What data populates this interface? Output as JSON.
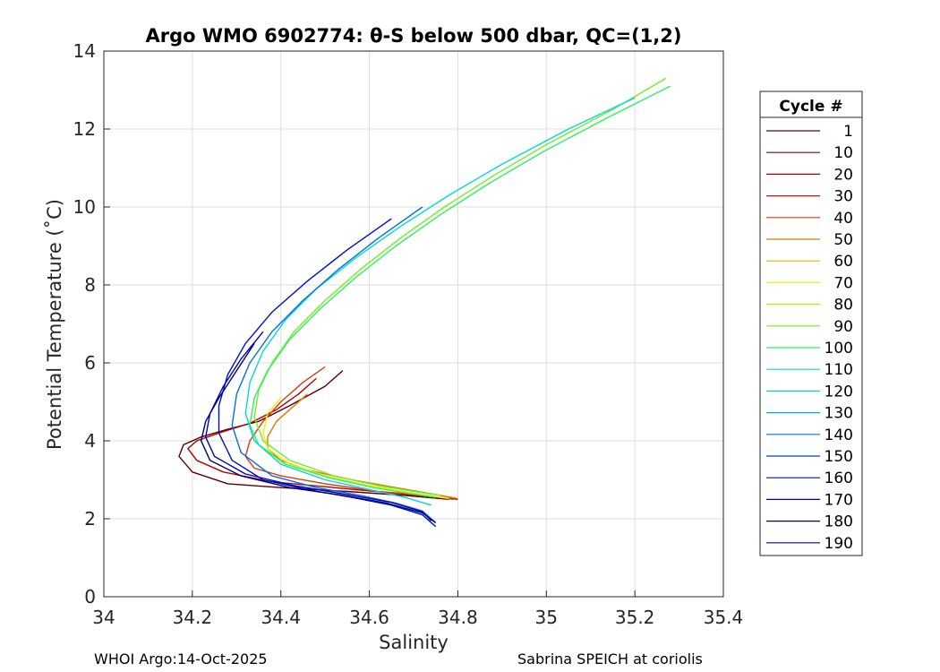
{
  "chart_data": {
    "type": "line",
    "title": "Argo WMO 6902774: θ-S below 500 dbar,  QC=(1,2)",
    "xlabel": "Salinity",
    "ylabel": "Potential Temperature (˚C)",
    "xlim": [
      34,
      35.4
    ],
    "ylim": [
      0,
      14
    ],
    "x_ticks": [
      "34",
      "34.2",
      "34.4",
      "34.6",
      "34.8",
      "35",
      "35.2",
      "35.4"
    ],
    "y_ticks": [
      "0",
      "2",
      "4",
      "6",
      "8",
      "10",
      "12",
      "14"
    ],
    "grid": true,
    "legend": {
      "title": "Cycle #",
      "placement": "right",
      "entries": [
        {
          "label": "1",
          "color": "#5a0000"
        },
        {
          "label": "10",
          "color": "#8a0000"
        },
        {
          "label": "20",
          "color": "#b00000"
        },
        {
          "label": "30",
          "color": "#d01010"
        },
        {
          "label": "40",
          "color": "#dd3a10"
        },
        {
          "label": "50",
          "color": "#dd7a00"
        },
        {
          "label": "60",
          "color": "#e0b000"
        },
        {
          "label": "70",
          "color": "#f0f000"
        },
        {
          "label": "80",
          "color": "#b8f000"
        },
        {
          "label": "90",
          "color": "#70f020"
        },
        {
          "label": "100",
          "color": "#30f060"
        },
        {
          "label": "110",
          "color": "#10e0a0"
        },
        {
          "label": "120",
          "color": "#00d8d8"
        },
        {
          "label": "130",
          "color": "#00a8e8"
        },
        {
          "label": "140",
          "color": "#0070e0"
        },
        {
          "label": "150",
          "color": "#0040d0"
        },
        {
          "label": "160",
          "color": "#0010c0"
        },
        {
          "label": "170",
          "color": "#0000a0"
        },
        {
          "label": "180",
          "color": "#000070"
        },
        {
          "label": "190",
          "color": "#0000c8"
        }
      ]
    },
    "series": [
      {
        "color": "#5a0000",
        "x": [
          34.54,
          34.5,
          34.42,
          34.35,
          34.28,
          34.22,
          34.18,
          34.17,
          34.2,
          34.28,
          34.4,
          34.55,
          34.68,
          34.78
        ],
        "y": [
          5.8,
          5.4,
          4.9,
          4.5,
          4.3,
          4.1,
          3.9,
          3.6,
          3.2,
          2.9,
          2.8,
          2.7,
          2.6,
          2.5
        ]
      },
      {
        "color": "#b00000",
        "x": [
          34.48,
          34.44,
          34.39,
          34.33,
          34.26,
          34.21,
          34.19,
          34.21,
          34.27,
          34.38,
          34.52,
          34.66,
          34.76,
          34.8
        ],
        "y": [
          5.6,
          5.2,
          4.8,
          4.45,
          4.2,
          4.0,
          3.8,
          3.5,
          3.2,
          2.95,
          2.8,
          2.65,
          2.55,
          2.5
        ]
      },
      {
        "color": "#dd3a10",
        "x": [
          34.5,
          34.45,
          34.4,
          34.36,
          34.33,
          34.32,
          34.34,
          34.4,
          34.5,
          34.62,
          34.73,
          34.79
        ],
        "y": [
          5.9,
          5.5,
          5.0,
          4.5,
          4.0,
          3.6,
          3.3,
          3.1,
          2.9,
          2.7,
          2.6,
          2.5
        ]
      },
      {
        "color": "#dd7a00",
        "x": [
          34.46,
          34.42,
          34.39,
          34.37,
          34.37,
          34.4,
          34.46,
          34.56,
          34.66,
          34.75,
          34.8
        ],
        "y": [
          5.2,
          4.8,
          4.5,
          4.1,
          3.8,
          3.5,
          3.25,
          3.0,
          2.8,
          2.62,
          2.52
        ]
      },
      {
        "color": "#f0f000",
        "x": [
          34.4,
          34.37,
          34.36,
          34.37,
          34.42,
          34.5,
          34.6,
          34.7,
          34.78
        ],
        "y": [
          5.1,
          4.7,
          4.2,
          3.8,
          3.4,
          3.1,
          2.85,
          2.65,
          2.52
        ]
      },
      {
        "color": "#70f020",
        "x": [
          35.27,
          35.15,
          35.0,
          34.88,
          34.77,
          34.67,
          34.58,
          34.5,
          34.43,
          34.38,
          34.35,
          34.34,
          34.36,
          34.42,
          34.52,
          34.62,
          34.7,
          34.76
        ],
        "y": [
          13.3,
          12.5,
          11.6,
          10.8,
          10.0,
          9.2,
          8.4,
          7.6,
          6.8,
          6.0,
          5.3,
          4.6,
          4.0,
          3.5,
          3.1,
          2.85,
          2.7,
          2.6
        ]
      },
      {
        "color": "#30f060",
        "x": [
          35.28,
          35.14,
          34.99,
          34.87,
          34.76,
          34.66,
          34.57,
          34.49,
          34.42,
          34.37,
          34.34,
          34.33,
          34.35,
          34.41,
          34.51,
          34.61,
          34.69,
          34.75
        ],
        "y": [
          13.1,
          12.3,
          11.4,
          10.6,
          9.8,
          9.0,
          8.2,
          7.4,
          6.6,
          5.8,
          5.1,
          4.4,
          3.9,
          3.4,
          3.05,
          2.8,
          2.65,
          2.55
        ]
      },
      {
        "color": "#00d8d8",
        "x": [
          35.2,
          35.05,
          34.9,
          34.78,
          34.67,
          34.57,
          34.48,
          34.41,
          34.36,
          34.33,
          34.32,
          34.34,
          34.4,
          34.5,
          34.6,
          34.68,
          34.74
        ],
        "y": [
          12.8,
          12.0,
          11.1,
          10.3,
          9.5,
          8.7,
          7.9,
          7.1,
          6.3,
          5.5,
          4.7,
          4.0,
          3.4,
          3.0,
          2.75,
          2.55,
          2.35
        ]
      },
      {
        "color": "#0070e0",
        "x": [
          34.72,
          34.62,
          34.53,
          34.45,
          34.38,
          34.33,
          34.3,
          34.29,
          34.31,
          34.38,
          34.48,
          34.58,
          34.66,
          34.72,
          34.75
        ],
        "y": [
          10.0,
          9.2,
          8.4,
          7.6,
          6.8,
          6.0,
          5.2,
          4.4,
          3.7,
          3.1,
          2.8,
          2.6,
          2.4,
          2.2,
          1.9
        ]
      },
      {
        "color": "#0010c0",
        "x": [
          34.65,
          34.55,
          34.46,
          34.38,
          34.32,
          34.28,
          34.26,
          34.26,
          34.29,
          34.36,
          34.46,
          34.56,
          34.65,
          34.72,
          34.75
        ],
        "y": [
          9.7,
          8.9,
          8.1,
          7.3,
          6.5,
          5.7,
          4.9,
          4.2,
          3.5,
          3.0,
          2.75,
          2.55,
          2.35,
          2.1,
          1.8
        ]
      },
      {
        "color": "#000070",
        "x": [
          34.34,
          34.3,
          34.26,
          34.23,
          34.22,
          34.24,
          34.31,
          34.42,
          34.54,
          34.64,
          34.72,
          34.75
        ],
        "y": [
          6.5,
          5.8,
          5.1,
          4.5,
          4.0,
          3.5,
          3.1,
          2.8,
          2.6,
          2.4,
          2.15,
          1.9
        ]
      },
      {
        "color": "#0000c8",
        "x": [
          34.36,
          34.31,
          34.27,
          34.24,
          34.23,
          34.25,
          34.32,
          34.43,
          34.55,
          34.65,
          34.72,
          34.74
        ],
        "y": [
          6.8,
          6.1,
          5.4,
          4.7,
          4.1,
          3.6,
          3.15,
          2.85,
          2.62,
          2.42,
          2.18,
          1.95
        ]
      }
    ]
  },
  "footer": {
    "left": "WHOI Argo:14-Oct-2025",
    "right": "Sabrina SPEICH at coriolis"
  }
}
